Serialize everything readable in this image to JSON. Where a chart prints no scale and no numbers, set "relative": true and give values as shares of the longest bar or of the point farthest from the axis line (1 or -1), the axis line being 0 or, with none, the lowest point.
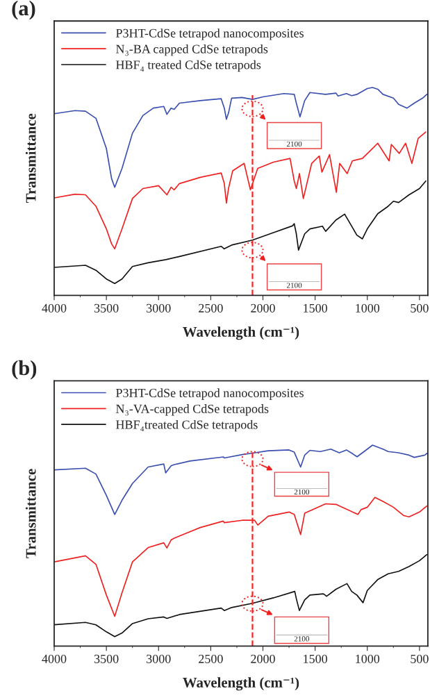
{
  "chart_data": [
    {
      "type": "line",
      "title": "(a)",
      "xlabel": "Wavelength (cm⁻¹)",
      "ylabel": "Transmittance",
      "relative": true,
      "xlim": [
        4000,
        420
      ],
      "xticks": [
        4000,
        3500,
        3000,
        2500,
        2000,
        1500,
        1000,
        500
      ],
      "tick_labels": "x",
      "legend": "top left",
      "grid": false,
      "marker": "none",
      "line_style": "solid",
      "ref_lines": [
        {
          "axis": "x",
          "value": 2100,
          "color": "#ff2020",
          "line_style": "dashed"
        }
      ],
      "annotations": [
        "2100",
        "2100"
      ],
      "series": [
        {
          "name": "P3HT-CdSe tetrapod nanocomposites",
          "color": "#3a4fb0",
          "x": [
            4000,
            3800,
            3700,
            3600,
            3500,
            3450,
            3420,
            3350,
            3250,
            3150,
            3050,
            2950,
            2920,
            2880,
            2850,
            2800,
            2600,
            2400,
            2370,
            2350,
            2330,
            2300,
            2200,
            2100,
            2000,
            1800,
            1700,
            1680,
            1645,
            1600,
            1550,
            1400,
            1300,
            1280,
            1200,
            1150,
            1100,
            1000,
            950,
            900,
            850,
            750,
            700,
            620,
            550,
            470,
            430
          ],
          "values": [
            0.874,
            0.889,
            0.886,
            0.852,
            0.707,
            0.562,
            0.52,
            0.611,
            0.78,
            0.865,
            0.901,
            0.909,
            0.871,
            0.901,
            0.895,
            0.925,
            0.937,
            0.946,
            0.901,
            0.847,
            0.877,
            0.949,
            0.952,
            0.943,
            0.955,
            0.971,
            0.967,
            0.925,
            0.859,
            0.937,
            0.976,
            0.967,
            0.973,
            0.959,
            0.971,
            0.961,
            0.967,
            0.995,
            1.0,
            0.992,
            0.967,
            0.949,
            0.919,
            0.901,
            0.925,
            0.949,
            0.967
          ]
        },
        {
          "name": "N₃-BA capped CdSe tetrapods",
          "color": "#ee2020",
          "x": [
            4000,
            3800,
            3700,
            3600,
            3500,
            3450,
            3420,
            3350,
            3250,
            3150,
            3000,
            2920,
            2880,
            2850,
            2800,
            2600,
            2400,
            2370,
            2350,
            2330,
            2290,
            2180,
            2120,
            2050,
            1900,
            1740,
            1700,
            1680,
            1650,
            1613,
            1533,
            1460,
            1435,
            1362,
            1297,
            1265,
            1193,
            1144,
            1047,
            974,
            900,
            791,
            770,
            694,
            633,
            573,
            512,
            440
          ],
          "values": [
            0.469,
            0.487,
            0.484,
            0.429,
            0.32,
            0.248,
            0.224,
            0.32,
            0.466,
            0.514,
            0.528,
            0.484,
            0.52,
            0.508,
            0.538,
            0.568,
            0.589,
            0.538,
            0.444,
            0.514,
            0.599,
            0.635,
            0.508,
            0.611,
            0.641,
            0.659,
            0.55,
            0.514,
            0.586,
            0.466,
            0.635,
            0.671,
            0.593,
            0.677,
            0.496,
            0.635,
            0.586,
            0.647,
            0.659,
            0.695,
            0.732,
            0.647,
            0.726,
            0.683,
            0.732,
            0.635,
            0.756,
            0.786
          ]
        },
        {
          "name": "HBF₄ treated CdSe tetrapods",
          "color": "#111111",
          "x": [
            4000,
            3700,
            3600,
            3500,
            3420,
            3350,
            3250,
            3100,
            2930,
            2800,
            2400,
            2371,
            2300,
            2100,
            1900,
            1715,
            1700,
            1680,
            1659,
            1600,
            1550,
            1430,
            1399,
            1300,
            1217,
            1150,
            1100,
            1047,
            1000,
            900,
            800,
            750,
            700,
            600,
            500,
            440
          ],
          "values": [
            0.135,
            0.145,
            0.121,
            0.079,
            0.057,
            0.079,
            0.139,
            0.157,
            0.172,
            0.187,
            0.236,
            0.224,
            0.242,
            0.266,
            0.302,
            0.335,
            0.345,
            0.296,
            0.218,
            0.296,
            0.32,
            0.333,
            0.308,
            0.363,
            0.391,
            0.333,
            0.29,
            0.272,
            0.32,
            0.393,
            0.429,
            0.453,
            0.447,
            0.484,
            0.514,
            0.55
          ]
        }
      ]
    },
    {
      "type": "line",
      "title": "(b)",
      "xlabel": "Wavelength (cm⁻¹)",
      "ylabel": "Transmittance",
      "relative": true,
      "xlim": [
        4000,
        420
      ],
      "xticks": [
        4000,
        3500,
        3000,
        2500,
        2000,
        1500,
        1000,
        500
      ],
      "tick_labels": "x",
      "legend": "top left",
      "grid": false,
      "marker": "none",
      "line_style": "solid",
      "ref_lines": [
        {
          "axis": "x",
          "value": 2100,
          "color": "#ff2020",
          "line_style": "dashed"
        }
      ],
      "annotations": [
        "2100",
        "2100"
      ],
      "series": [
        {
          "name": "P3HT-CdSe tetrapod nanocomposites",
          "color": "#3a4fb0",
          "x": [
            4000,
            3700,
            3600,
            3500,
            3420,
            3350,
            3250,
            3100,
            2950,
            2932,
            2880,
            2850,
            2700,
            2378,
            2370,
            2200,
            2100,
            1950,
            1750,
            1700,
            1639,
            1600,
            1550,
            1450,
            1350,
            1268,
            1200,
            1150,
            1098,
            1000,
            950,
            850,
            800,
            700,
            600,
            550,
            450,
            420
          ],
          "values": [
            0.877,
            0.885,
            0.856,
            0.75,
            0.655,
            0.726,
            0.809,
            0.891,
            0.906,
            0.862,
            0.897,
            0.903,
            0.921,
            0.941,
            0.936,
            0.953,
            0.96,
            0.972,
            0.976,
            0.965,
            0.891,
            0.95,
            0.974,
            0.968,
            0.98,
            0.962,
            0.976,
            0.96,
            0.942,
            0.98,
            1.0,
            0.98,
            0.968,
            0.962,
            0.95,
            0.939,
            0.95,
            0.962
          ]
        },
        {
          "name": "N₃-VA-capped CdSe tetrapods",
          "color": "#ee2020",
          "x": [
            4000,
            3700,
            3600,
            3500,
            3420,
            3350,
            3250,
            3100,
            2950,
            2920,
            2880,
            2850,
            2600,
            2380,
            2370,
            2200,
            2080,
            2049,
            1950,
            1750,
            1700,
            1639,
            1600,
            1500,
            1400,
            1300,
            1090,
            1060,
            1000,
            927,
            850,
            750,
            650,
            600,
            500,
            430
          ],
          "values": [
            0.419,
            0.449,
            0.407,
            0.254,
            0.148,
            0.266,
            0.419,
            0.49,
            0.514,
            0.488,
            0.528,
            0.537,
            0.59,
            0.622,
            0.614,
            0.626,
            0.626,
            0.602,
            0.646,
            0.667,
            0.655,
            0.555,
            0.661,
            0.685,
            0.708,
            0.705,
            0.655,
            0.679,
            0.691,
            0.74,
            0.72,
            0.691,
            0.649,
            0.643,
            0.667,
            0.697
          ]
        },
        {
          "name": "HBF₄treated CdSe tetrapods",
          "color": "#111111",
          "x": [
            4000,
            3700,
            3600,
            3500,
            3420,
            3350,
            3250,
            3100,
            2950,
            2920,
            2800,
            2400,
            2370,
            2300,
            2100,
            1900,
            1695,
            1680,
            1651,
            1600,
            1550,
            1420,
            1390,
            1300,
            1195,
            1150,
            1100,
            1041,
            1000,
            900,
            800,
            700,
            600,
            500,
            430
          ],
          "values": [
            0.106,
            0.118,
            0.106,
            0.071,
            0.047,
            0.065,
            0.112,
            0.136,
            0.145,
            0.138,
            0.157,
            0.189,
            0.177,
            0.192,
            0.213,
            0.24,
            0.272,
            0.236,
            0.177,
            0.23,
            0.254,
            0.26,
            0.248,
            0.283,
            0.311,
            0.272,
            0.254,
            0.216,
            0.277,
            0.331,
            0.36,
            0.372,
            0.396,
            0.425,
            0.455
          ]
        }
      ]
    }
  ]
}
